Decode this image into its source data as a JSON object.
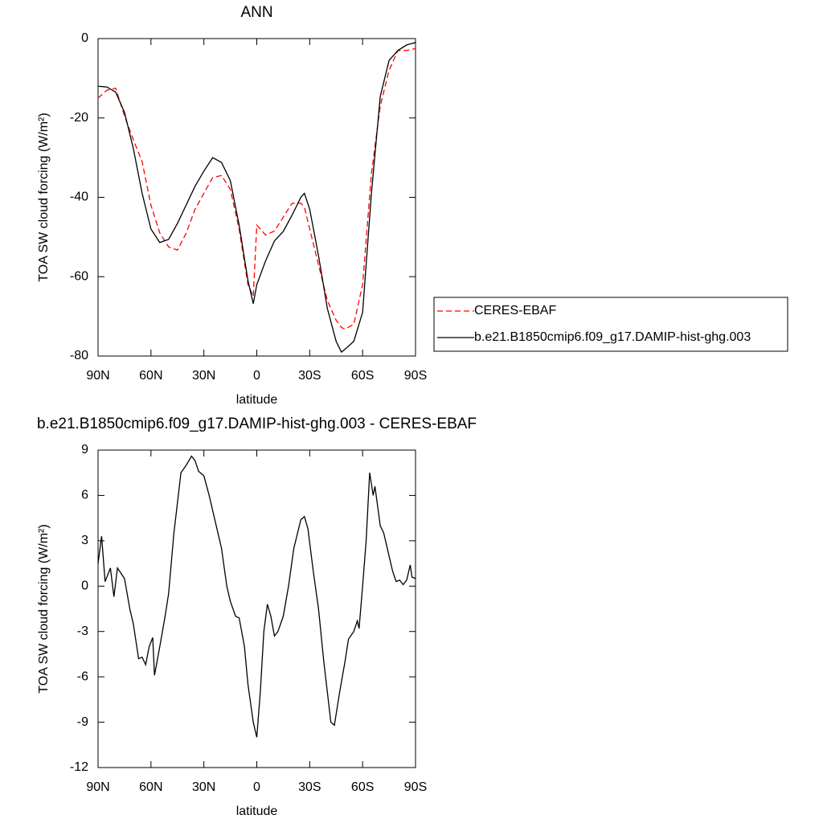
{
  "chart_data": [
    {
      "type": "line",
      "title": "ANN",
      "x_label": "latitude",
      "y_label": "TOA SW cloud forcing (W/m²)",
      "x": [
        90,
        85,
        80,
        75,
        70,
        65,
        60,
        55,
        50,
        45,
        40,
        35,
        30,
        25,
        20,
        15,
        10,
        5,
        2,
        0,
        -5,
        -10,
        -15,
        -20,
        -25,
        -27,
        -30,
        -35,
        -40,
        -45,
        -48,
        -50,
        -55,
        -60,
        -65,
        -70,
        -75,
        -80,
        -85,
        -90
      ],
      "series": [
        {
          "name": "CERES-EBAF",
          "color": "#ff0000",
          "line_style": "dashed",
          "values": [
            -15,
            -13,
            -12.5,
            -19.5,
            -25.5,
            -31,
            -42,
            -49,
            -52.5,
            -53.3,
            -49,
            -43,
            -39,
            -35,
            -34.5,
            -38,
            -48,
            -62,
            -65,
            -47,
            -49.5,
            -48.5,
            -45,
            -41.5,
            -41.5,
            -42.5,
            -48,
            -57,
            -66,
            -71,
            -72.8,
            -73.2,
            -72,
            -62,
            -34,
            -17,
            -8,
            -3,
            -3,
            -2.5
          ]
        },
        {
          "name": "b.e21.B1850cmip6.f09_g17.DAMIP-hist-ghg.003",
          "color": "#000000",
          "line_style": "solid",
          "values": [
            -12,
            -12.2,
            -13.5,
            -18.6,
            -27.7,
            -39,
            -48,
            -51.4,
            -50.6,
            -46.6,
            -41.9,
            -37.2,
            -33.4,
            -30,
            -31.2,
            -35.8,
            -47,
            -61,
            -66.8,
            -62,
            -56,
            -51,
            -48.6,
            -44.5,
            -40,
            -39,
            -43,
            -54.7,
            -68,
            -76.3,
            -79,
            -78.3,
            -76.3,
            -69,
            -39,
            -14.6,
            -5.5,
            -3,
            -1.6,
            -1
          ]
        }
      ],
      "xlim": [
        90,
        -90
      ],
      "xticks": [
        {
          "value": 90,
          "label": "90N"
        },
        {
          "value": 60,
          "label": "60N"
        },
        {
          "value": 30,
          "label": "30N"
        },
        0,
        {
          "value": -30,
          "label": "30S"
        },
        {
          "value": -60,
          "label": "60S"
        },
        {
          "value": -90,
          "label": "90S"
        }
      ],
      "ylim": [
        -80,
        0
      ],
      "yticks": [
        0,
        -20,
        -40,
        -60,
        -80
      ],
      "legend": "right"
    },
    {
      "type": "line",
      "title": "b.e21.B1850cmip6.f09_g17.DAMIP-hist-ghg.003 - CERES-EBAF",
      "x_label": "latitude",
      "y_label": "TOA SW cloud forcing (W/m²)",
      "x": [
        90,
        88,
        86,
        83,
        81,
        79,
        75,
        72,
        70,
        67,
        65,
        63,
        61,
        59,
        58,
        55,
        52,
        50,
        47,
        45,
        43,
        40,
        37,
        35,
        33,
        30,
        27,
        25,
        22,
        20,
        17,
        15,
        12,
        10,
        7,
        5,
        2,
        0,
        -2,
        -4,
        -6,
        -8,
        -10,
        -12,
        -15,
        -18,
        -21,
        -25,
        -27,
        -29,
        -32,
        -35,
        -38,
        -40,
        -42,
        -44,
        -47,
        -50,
        -52,
        -55,
        -57,
        -58,
        -60,
        -62,
        -64,
        -66,
        -67,
        -70,
        -72,
        -75,
        -77,
        -79,
        -81,
        -83,
        -85,
        -87,
        -88,
        -90
      ],
      "series": [
        {
          "name": null,
          "color": "#000000",
          "line_style": "solid",
          "values": [
            1.5,
            3.3,
            0.3,
            1.2,
            -0.7,
            1.2,
            0.5,
            -1.5,
            -2.5,
            -4.8,
            -4.7,
            -5.2,
            -4,
            -3.4,
            -5.9,
            -4,
            -2,
            -0.5,
            3.5,
            5.5,
            7.5,
            8,
            8.6,
            8.3,
            7.6,
            7.3,
            6,
            5,
            3.5,
            2.5,
            0,
            -1,
            -2,
            -2.1,
            -4,
            -6.5,
            -9,
            -10,
            -7,
            -3,
            -1.2,
            -2,
            -3.3,
            -3,
            -2,
            0,
            2.5,
            4.4,
            4.6,
            3.8,
            1,
            -1.5,
            -5,
            -7,
            -9,
            -9.2,
            -7,
            -5,
            -3.5,
            -3,
            -2.3,
            -2.8,
            0,
            3,
            7.5,
            6,
            6.6,
            4,
            3.5,
            2,
            1,
            0.3,
            0.4,
            0.1,
            0.4,
            1.4,
            0.6,
            0.5
          ]
        }
      ],
      "xlim": [
        90,
        -90
      ],
      "xticks": [
        {
          "value": 90,
          "label": "90N"
        },
        {
          "value": 60,
          "label": "60N"
        },
        {
          "value": 30,
          "label": "30N"
        },
        0,
        {
          "value": -30,
          "label": "30S"
        },
        {
          "value": -60,
          "label": "60S"
        },
        {
          "value": -90,
          "label": "90S"
        }
      ],
      "ylim": [
        -12,
        9
      ],
      "yticks": [
        9,
        6,
        3,
        0,
        -3,
        -6,
        -9,
        -12
      ]
    }
  ]
}
